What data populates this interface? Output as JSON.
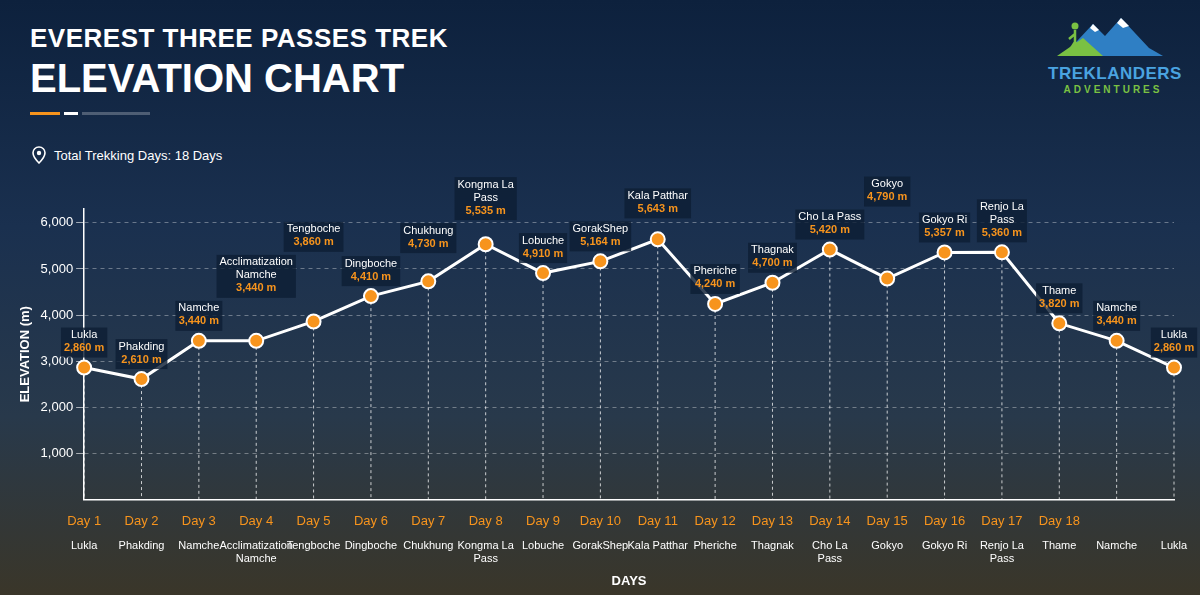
{
  "chart_data": {
    "type": "line",
    "title": [
      "EVEREST THREE PASSES TREK",
      "ELEVATION CHART"
    ],
    "subtitle": "Total Trekking Days: 18 Days",
    "logo_text": [
      "TREKLANDERS",
      "ADVENTURES"
    ],
    "x_label": "DAYS",
    "y_label": "ELEVATION (m)",
    "categories": [
      "Day 1",
      "Day 2",
      "Day 3",
      "Day 4",
      "Day 5",
      "Day 6",
      "Day 7",
      "Day 8",
      "Day 9",
      "Day 10",
      "Day 11",
      "Day 12",
      "Day 13",
      "Day 14",
      "Day 15",
      "Day 16",
      "Day 17",
      "Day 18",
      null,
      null
    ],
    "place_names": [
      "Lukla",
      "Phakding",
      "Namche",
      "Acclimatization Namche",
      "Tengboche",
      "Dingboche",
      "Chukhung",
      "Kongma La Pass",
      "Lobuche",
      "GorakShep",
      "Kala Patthar",
      "Pheriche",
      "Thagnak",
      "Cho La Pass",
      "Gokyo",
      "Gokyo Ri",
      "Renjo La Pass",
      "Thame",
      "Namche",
      "Lukla"
    ],
    "point_labels": [
      "Lukla",
      "Phakding",
      "Namche",
      "Acclimatization Namche",
      "Tengboche",
      "Dingboche",
      "Chukhung",
      "Kongma La Pass",
      "Lobuche",
      "GorakShep",
      "Kala Patthar",
      "Pheriche",
      "Thagnak",
      "Cho La Pass",
      "Gokyo",
      "Gokyo Ri",
      "Renjo La Pass",
      "Thame",
      "Namche",
      "Lukla"
    ],
    "values": [
      2860,
      2610,
      3440,
      3440,
      3860,
      4410,
      4730,
      5535,
      4910,
      5164,
      5643,
      4240,
      4700,
      5420,
      4790,
      5357,
      5360,
      3820,
      3440,
      2860
    ],
    "value_labels": [
      "2,860 m",
      "2,610 m",
      "3,440 m",
      "3,440 m",
      "3,860 m",
      "4,410 m",
      "4,730 m",
      "5,535 m",
      "4,910 m",
      "5,164 m",
      "5,643 m",
      "4,240 m",
      "4,700 m",
      "5,420 m",
      "4,790 m",
      "5,357 m",
      "5,360 m",
      "3,820 m",
      "3,440 m",
      "2,860 m"
    ],
    "color": "#ffffff",
    "colors": [
      "#f7941d",
      "#f7941d",
      "#f7941d",
      "#f7941d",
      "#f7941d",
      "#f7941d",
      "#f7941d",
      "#f7941d",
      "#f7941d",
      "#f7941d",
      "#f7941d",
      "#f7941d",
      "#f7941d",
      "#f7941d",
      "#f7941d",
      "#f7941d",
      "#f7941d",
      "#f7941d",
      "#f7941d",
      "#f7941d"
    ],
    "marker": "circle",
    "line_style": "solid",
    "ylim": [
      0,
      6300
    ],
    "yticks": [
      {
        "value": 1000,
        "label": "1,000"
      },
      {
        "value": 2000,
        "label": "2,000"
      },
      {
        "value": 3000,
        "label": "3,000"
      },
      {
        "value": 4000,
        "label": "4,000"
      },
      {
        "value": 5000,
        "label": "5,000"
      },
      {
        "value": 6000,
        "label": "6,000"
      }
    ],
    "grid": true,
    "data_labels": true
  }
}
